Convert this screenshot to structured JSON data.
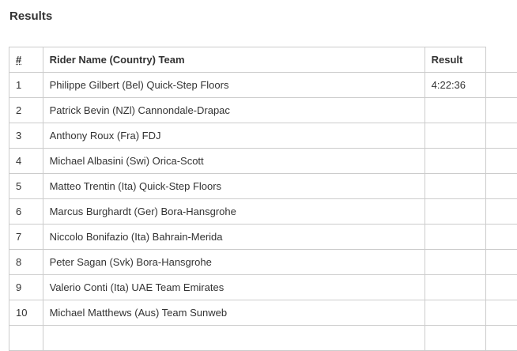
{
  "title": "Results",
  "table": {
    "headers": [
      "#",
      "Rider Name (Country) Team",
      "Result"
    ],
    "rows": [
      {
        "rank": "1",
        "rider": "Philippe Gilbert (Bel) Quick-Step Floors",
        "result": "4:22:36"
      },
      {
        "rank": "2",
        "rider": "Patrick Bevin (NZl) Cannondale-Drapac",
        "result": ""
      },
      {
        "rank": "3",
        "rider": "Anthony Roux (Fra) FDJ",
        "result": ""
      },
      {
        "rank": "4",
        "rider": "Michael Albasini (Swi) Orica-Scott",
        "result": ""
      },
      {
        "rank": "5",
        "rider": "Matteo Trentin (Ita) Quick-Step Floors",
        "result": ""
      },
      {
        "rank": "6",
        "rider": "Marcus Burghardt (Ger) Bora-Hansgrohe",
        "result": ""
      },
      {
        "rank": "7",
        "rider": "Niccolo Bonifazio (Ita) Bahrain-Merida",
        "result": ""
      },
      {
        "rank": "8",
        "rider": "Peter Sagan (Svk) Bora-Hansgrohe",
        "result": ""
      },
      {
        "rank": "9",
        "rider": "Valerio Conti (Ita) UAE Team Emirates",
        "result": ""
      },
      {
        "rank": "10",
        "rider": "Michael Matthews (Aus) Team Sunweb",
        "result": ""
      }
    ]
  }
}
